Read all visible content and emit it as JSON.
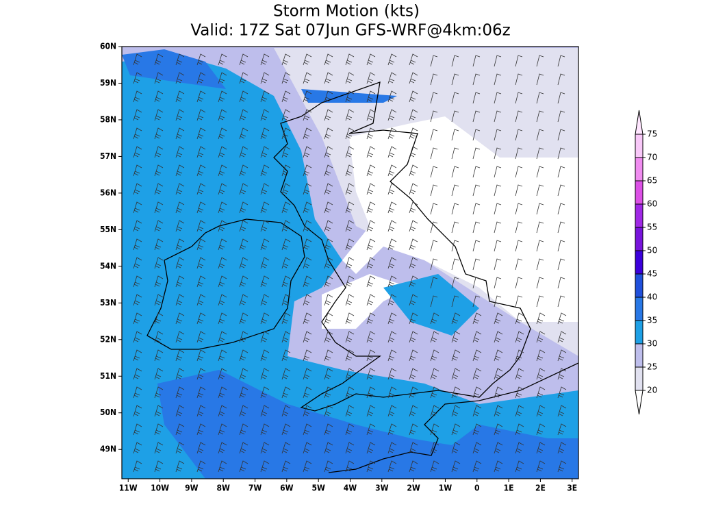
{
  "title": "Storm Motion (kts)",
  "subtitle": "Valid: 17Z Sat 07Jun GFS-WRF@4km:06z",
  "map": {
    "lonlim": [
      -11.2,
      3.2
    ],
    "latlim": [
      48.2,
      60
    ],
    "lon_ticks": [
      {
        "value": -11,
        "label": "11W"
      },
      {
        "value": -10,
        "label": "10W"
      },
      {
        "value": -9,
        "label": "9W"
      },
      {
        "value": -8,
        "label": "8W"
      },
      {
        "value": -7,
        "label": "7W"
      },
      {
        "value": -6,
        "label": "6W"
      },
      {
        "value": -5,
        "label": "5W"
      },
      {
        "value": -4,
        "label": "4W"
      },
      {
        "value": -3,
        "label": "3W"
      },
      {
        "value": -2,
        "label": "2W"
      },
      {
        "value": -1,
        "label": "1W"
      },
      0,
      {
        "value": 1,
        "label": "1E"
      },
      {
        "value": 2,
        "label": "2E"
      },
      {
        "value": 3,
        "label": "3E"
      }
    ],
    "lat_ticks": [
      {
        "value": 60,
        "label": "60N"
      },
      {
        "value": 59,
        "label": "59N"
      },
      {
        "value": 58,
        "label": "58N"
      },
      {
        "value": 57,
        "label": "57N"
      },
      {
        "value": 56,
        "label": "56N"
      },
      {
        "value": 55,
        "label": "55N"
      },
      {
        "value": 54,
        "label": "54N"
      },
      {
        "value": 53,
        "label": "53N"
      },
      {
        "value": 52,
        "label": "52N"
      },
      {
        "value": 51,
        "label": "51N"
      },
      {
        "value": 50,
        "label": "50N"
      },
      {
        "value": 49,
        "label": "49N"
      }
    ]
  },
  "colorbar": {
    "levels": [
      20,
      25,
      30,
      35,
      40,
      45,
      50,
      55,
      60,
      65,
      70,
      75
    ],
    "colors": [
      "#ffffff",
      "#e1e1f0",
      "#bebeec",
      "#1ea0e6",
      "#2878e6",
      "#2050dc",
      "#3c00dc",
      "#7814dc",
      "#a028e6",
      "#dc50e6",
      "#f08cf0",
      "#f8c8f8",
      "#ffe6ff"
    ]
  }
}
